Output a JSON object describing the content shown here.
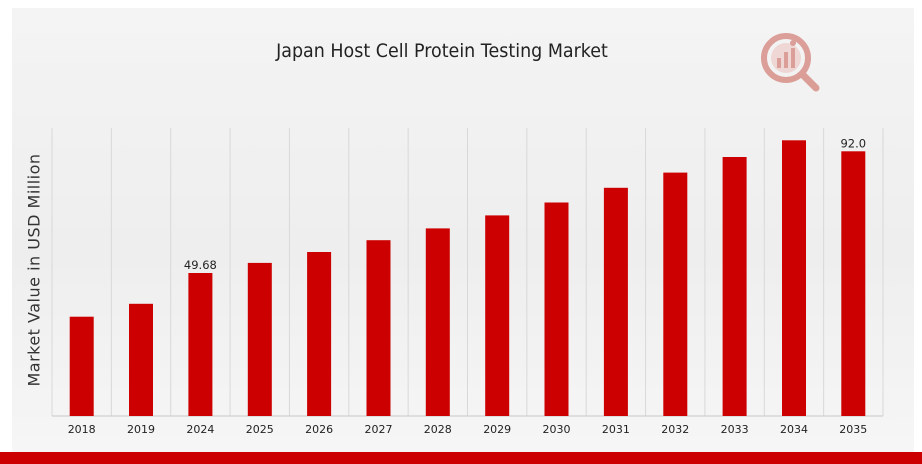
{
  "chart_data": {
    "type": "bar",
    "title": "Japan Host Cell Protein Testing Market",
    "ylabel": "Market Value in USD Million",
    "xlabel": "",
    "categories": [
      "2018",
      "2019",
      "2024",
      "2025",
      "2026",
      "2027",
      "2028",
      "2029",
      "2030",
      "2031",
      "2032",
      "2033",
      "2034",
      "2035"
    ],
    "values": [
      34.5,
      39.0,
      49.68,
      53.2,
      57.0,
      61.1,
      65.2,
      69.7,
      74.2,
      79.3,
      84.6,
      90.0,
      95.8,
      92.0
    ],
    "data_labels": [
      {
        "category": "2024",
        "text": "49.68"
      },
      {
        "category": "2035",
        "text": "92.0"
      }
    ],
    "ylim": [
      0,
      98
    ],
    "grid": "vertical",
    "bar_color": "#cc0000",
    "legend": "none"
  },
  "colors": {
    "bar": "#cc0000",
    "bottom_bar": "#cc0000",
    "grid": "#d8d8d8",
    "logo": "#c0392b"
  },
  "logo_icon": "magnifier-bar-chart-icon"
}
